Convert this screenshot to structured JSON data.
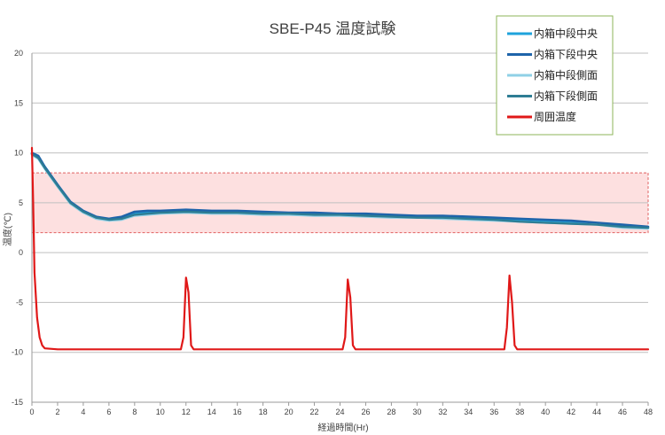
{
  "chart_data": {
    "type": "line",
    "title": "SBE-P45 温度試験",
    "xlabel": "経過時間(Hr)",
    "ylabel": "温度(℃)",
    "xlim": [
      0,
      48
    ],
    "ylim": [
      -15,
      20
    ],
    "x_ticks": [
      0,
      2,
      4,
      6,
      8,
      10,
      12,
      14,
      16,
      18,
      20,
      22,
      24,
      26,
      28,
      30,
      32,
      34,
      36,
      38,
      40,
      42,
      44,
      46,
      48
    ],
    "y_ticks": [
      20,
      15,
      10,
      5,
      0,
      -5,
      -10,
      -15
    ],
    "y_tick_labels": [
      "20",
      "15",
      "10",
      "5",
      "0",
      "-5",
      "-10",
      "-15"
    ],
    "grid": "horizontal",
    "legend_position": "top-right",
    "target_band": {
      "y_min": 2,
      "y_max": 8,
      "fill": "#fde0e0",
      "border": "#e06060"
    },
    "series": [
      {
        "name": "内箱中段中央",
        "color": "#1ea3dc",
        "points": [
          [
            0,
            9.9
          ],
          [
            0.5,
            9.6
          ],
          [
            1,
            8.6
          ],
          [
            2,
            6.8
          ],
          [
            3,
            5.0
          ],
          [
            4,
            4.1
          ],
          [
            5,
            3.5
          ],
          [
            6,
            3.3
          ],
          [
            7,
            3.4
          ],
          [
            8,
            3.9
          ],
          [
            9,
            4.0
          ],
          [
            10,
            4.0
          ],
          [
            12,
            4.1
          ],
          [
            14,
            4.0
          ],
          [
            16,
            4.0
          ],
          [
            18,
            3.9
          ],
          [
            20,
            3.9
          ],
          [
            22,
            3.8
          ],
          [
            24,
            3.8
          ],
          [
            26,
            3.7
          ],
          [
            28,
            3.6
          ],
          [
            30,
            3.6
          ],
          [
            32,
            3.5
          ],
          [
            34,
            3.4
          ],
          [
            36,
            3.3
          ],
          [
            38,
            3.2
          ],
          [
            40,
            3.1
          ],
          [
            42,
            3.0
          ],
          [
            44,
            2.9
          ],
          [
            46,
            2.6
          ],
          [
            48,
            2.5
          ]
        ]
      },
      {
        "name": "内箱下段中央",
        "color": "#1e64aa",
        "points": [
          [
            0,
            10.0
          ],
          [
            0.5,
            9.7
          ],
          [
            1,
            8.6
          ],
          [
            2,
            6.8
          ],
          [
            3,
            5.1
          ],
          [
            4,
            4.2
          ],
          [
            5,
            3.6
          ],
          [
            6,
            3.4
          ],
          [
            7,
            3.6
          ],
          [
            8,
            4.1
          ],
          [
            9,
            4.2
          ],
          [
            10,
            4.2
          ],
          [
            12,
            4.3
          ],
          [
            14,
            4.2
          ],
          [
            16,
            4.2
          ],
          [
            18,
            4.1
          ],
          [
            20,
            4.0
          ],
          [
            22,
            4.0
          ],
          [
            24,
            3.9
          ],
          [
            26,
            3.9
          ],
          [
            28,
            3.8
          ],
          [
            30,
            3.7
          ],
          [
            32,
            3.7
          ],
          [
            34,
            3.6
          ],
          [
            36,
            3.5
          ],
          [
            38,
            3.4
          ],
          [
            40,
            3.3
          ],
          [
            42,
            3.2
          ],
          [
            44,
            3.0
          ],
          [
            46,
            2.8
          ],
          [
            48,
            2.6
          ]
        ]
      },
      {
        "name": "内箱中段側面",
        "color": "#8fd0e6",
        "points": [
          [
            0,
            9.8
          ],
          [
            0.5,
            9.4
          ],
          [
            1,
            8.4
          ],
          [
            2,
            6.6
          ],
          [
            3,
            4.9
          ],
          [
            4,
            4.0
          ],
          [
            5,
            3.4
          ],
          [
            6,
            3.2
          ],
          [
            7,
            3.3
          ],
          [
            8,
            3.7
          ],
          [
            9,
            3.8
          ],
          [
            10,
            3.9
          ],
          [
            12,
            4.0
          ],
          [
            14,
            3.9
          ],
          [
            16,
            3.9
          ],
          [
            18,
            3.8
          ],
          [
            20,
            3.8
          ],
          [
            22,
            3.7
          ],
          [
            24,
            3.7
          ],
          [
            26,
            3.6
          ],
          [
            28,
            3.5
          ],
          [
            30,
            3.5
          ],
          [
            32,
            3.4
          ],
          [
            34,
            3.3
          ],
          [
            36,
            3.2
          ],
          [
            38,
            3.1
          ],
          [
            40,
            3.0
          ],
          [
            42,
            2.9
          ],
          [
            44,
            2.8
          ],
          [
            46,
            2.5
          ],
          [
            48,
            2.4
          ]
        ]
      },
      {
        "name": "内箱下段側面",
        "color": "#2e7d94",
        "points": [
          [
            0,
            9.9
          ],
          [
            0.5,
            9.5
          ],
          [
            1,
            8.5
          ],
          [
            2,
            6.7
          ],
          [
            3,
            5.0
          ],
          [
            4,
            4.1
          ],
          [
            5,
            3.5
          ],
          [
            6,
            3.3
          ],
          [
            7,
            3.4
          ],
          [
            8,
            3.8
          ],
          [
            9,
            3.9
          ],
          [
            10,
            4.0
          ],
          [
            12,
            4.1
          ],
          [
            14,
            4.0
          ],
          [
            16,
            4.0
          ],
          [
            18,
            3.9
          ],
          [
            20,
            3.9
          ],
          [
            22,
            3.8
          ],
          [
            24,
            3.8
          ],
          [
            26,
            3.7
          ],
          [
            28,
            3.6
          ],
          [
            30,
            3.5
          ],
          [
            32,
            3.5
          ],
          [
            34,
            3.4
          ],
          [
            36,
            3.3
          ],
          [
            38,
            3.1
          ],
          [
            40,
            3.0
          ],
          [
            42,
            2.9
          ],
          [
            44,
            2.8
          ],
          [
            46,
            2.6
          ],
          [
            48,
            2.5
          ]
        ]
      },
      {
        "name": "周囲温度",
        "color": "#e01818",
        "points": [
          [
            0,
            10.5
          ],
          [
            0.1,
            5
          ],
          [
            0.2,
            -2
          ],
          [
            0.4,
            -6.5
          ],
          [
            0.6,
            -8.5
          ],
          [
            0.8,
            -9.3
          ],
          [
            1,
            -9.6
          ],
          [
            2,
            -9.7
          ],
          [
            4,
            -9.7
          ],
          [
            6,
            -9.7
          ],
          [
            8,
            -9.7
          ],
          [
            10,
            -9.7
          ],
          [
            11.6,
            -9.7
          ],
          [
            11.8,
            -8.5
          ],
          [
            12.0,
            -2.5
          ],
          [
            12.2,
            -4
          ],
          [
            12.4,
            -9.3
          ],
          [
            12.6,
            -9.7
          ],
          [
            16,
            -9.7
          ],
          [
            20,
            -9.7
          ],
          [
            24.2,
            -9.7
          ],
          [
            24.4,
            -8.5
          ],
          [
            24.6,
            -2.7
          ],
          [
            24.8,
            -4.5
          ],
          [
            25.0,
            -9.3
          ],
          [
            25.2,
            -9.7
          ],
          [
            30,
            -9.7
          ],
          [
            34,
            -9.7
          ],
          [
            36.8,
            -9.7
          ],
          [
            37.0,
            -7.5
          ],
          [
            37.2,
            -2.3
          ],
          [
            37.4,
            -5
          ],
          [
            37.6,
            -9.3
          ],
          [
            37.8,
            -9.7
          ],
          [
            42,
            -9.7
          ],
          [
            46,
            -9.7
          ],
          [
            48,
            -9.7
          ]
        ]
      }
    ]
  }
}
